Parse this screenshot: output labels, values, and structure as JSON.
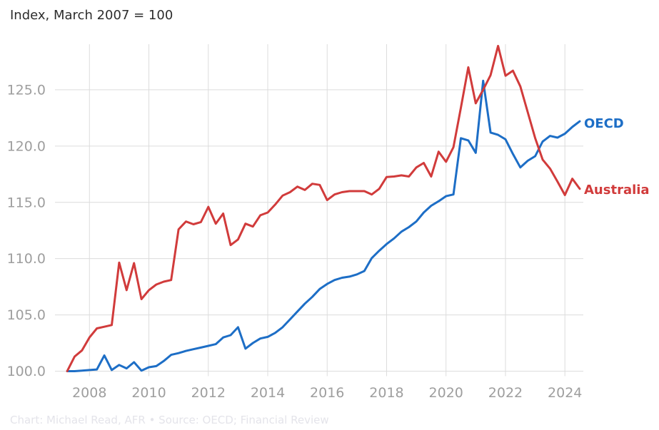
{
  "header": {
    "title": "Index, March 2007 = 100"
  },
  "footer": {
    "credit": "Chart: Michael Read, AFR • Source: OECD; Financial Review"
  },
  "colors": {
    "oecd_blue": "#1d6ec6",
    "australia_red": "#d13b3b",
    "gridline": "#dcdcdc",
    "tick_label": "#9e9e9e",
    "title_text": "#2d2d2d",
    "footer_text": "#e4e4ea",
    "background": "#ffffff"
  },
  "chart_data": {
    "type": "line",
    "title": "Index, March 2007 = 100",
    "xlabel": "",
    "ylabel": "",
    "grid": true,
    "legend_position": "right-end-of-line",
    "x_start": 2007.25,
    "x_step": 0.25,
    "x_unit": "quarterly",
    "xlim": [
      2006.84,
      2024.62
    ],
    "ylim": [
      100,
      129.05
    ],
    "x_ticks": [
      2008,
      2010,
      2012,
      2014,
      2016,
      2018,
      2020,
      2022,
      2024
    ],
    "x_tick_labels": [
      "2008",
      "2010",
      "2012",
      "2014",
      "2016",
      "2018",
      "2020",
      "2022",
      "2024"
    ],
    "y_ticks": [
      100,
      105,
      110,
      115,
      120,
      125
    ],
    "y_tick_labels": [
      "100.0",
      "105.0",
      "110.0",
      "115.0",
      "120.0",
      "125.0"
    ],
    "series": [
      {
        "name": "OECD",
        "color": "#1d6ec6",
        "values": [
          100.0,
          100.0,
          100.05,
          100.1,
          100.15,
          101.4,
          100.1,
          100.55,
          100.25,
          100.8,
          100.05,
          100.35,
          100.45,
          100.9,
          101.45,
          101.6,
          101.8,
          101.95,
          102.1,
          102.25,
          102.4,
          103.0,
          103.2,
          103.9,
          102.0,
          102.5,
          102.9,
          103.05,
          103.4,
          103.9,
          104.6,
          105.3,
          106.0,
          106.6,
          107.3,
          107.75,
          108.1,
          108.3,
          108.4,
          108.6,
          108.9,
          110.05,
          110.7,
          111.3,
          111.8,
          112.4,
          112.8,
          113.3,
          114.1,
          114.7,
          115.1,
          115.55,
          115.7,
          120.7,
          120.5,
          119.4,
          125.8,
          121.2,
          121.0,
          120.6,
          119.3,
          118.1,
          118.7,
          119.1,
          120.4,
          120.9,
          120.75,
          121.1,
          121.7,
          122.2
        ]
      },
      {
        "name": "Australia",
        "color": "#d13b3b",
        "values": [
          100.0,
          101.3,
          101.85,
          103.0,
          103.8,
          103.95,
          104.1,
          109.65,
          107.2,
          109.6,
          106.4,
          107.2,
          107.7,
          107.95,
          108.1,
          112.6,
          113.3,
          113.05,
          113.25,
          114.6,
          113.1,
          114.0,
          111.2,
          111.7,
          113.1,
          112.85,
          113.85,
          114.1,
          114.8,
          115.6,
          115.9,
          116.4,
          116.1,
          116.65,
          116.55,
          115.2,
          115.7,
          115.9,
          116.0,
          116.0,
          116.0,
          115.7,
          116.2,
          117.25,
          117.3,
          117.4,
          117.3,
          118.1,
          118.5,
          117.3,
          119.5,
          118.6,
          119.9,
          123.4,
          127.0,
          123.8,
          125.0,
          126.3,
          128.9,
          126.25,
          126.7,
          125.3,
          123.0,
          120.7,
          118.8,
          118.0,
          116.85,
          115.65,
          117.1,
          116.2
        ]
      }
    ]
  }
}
